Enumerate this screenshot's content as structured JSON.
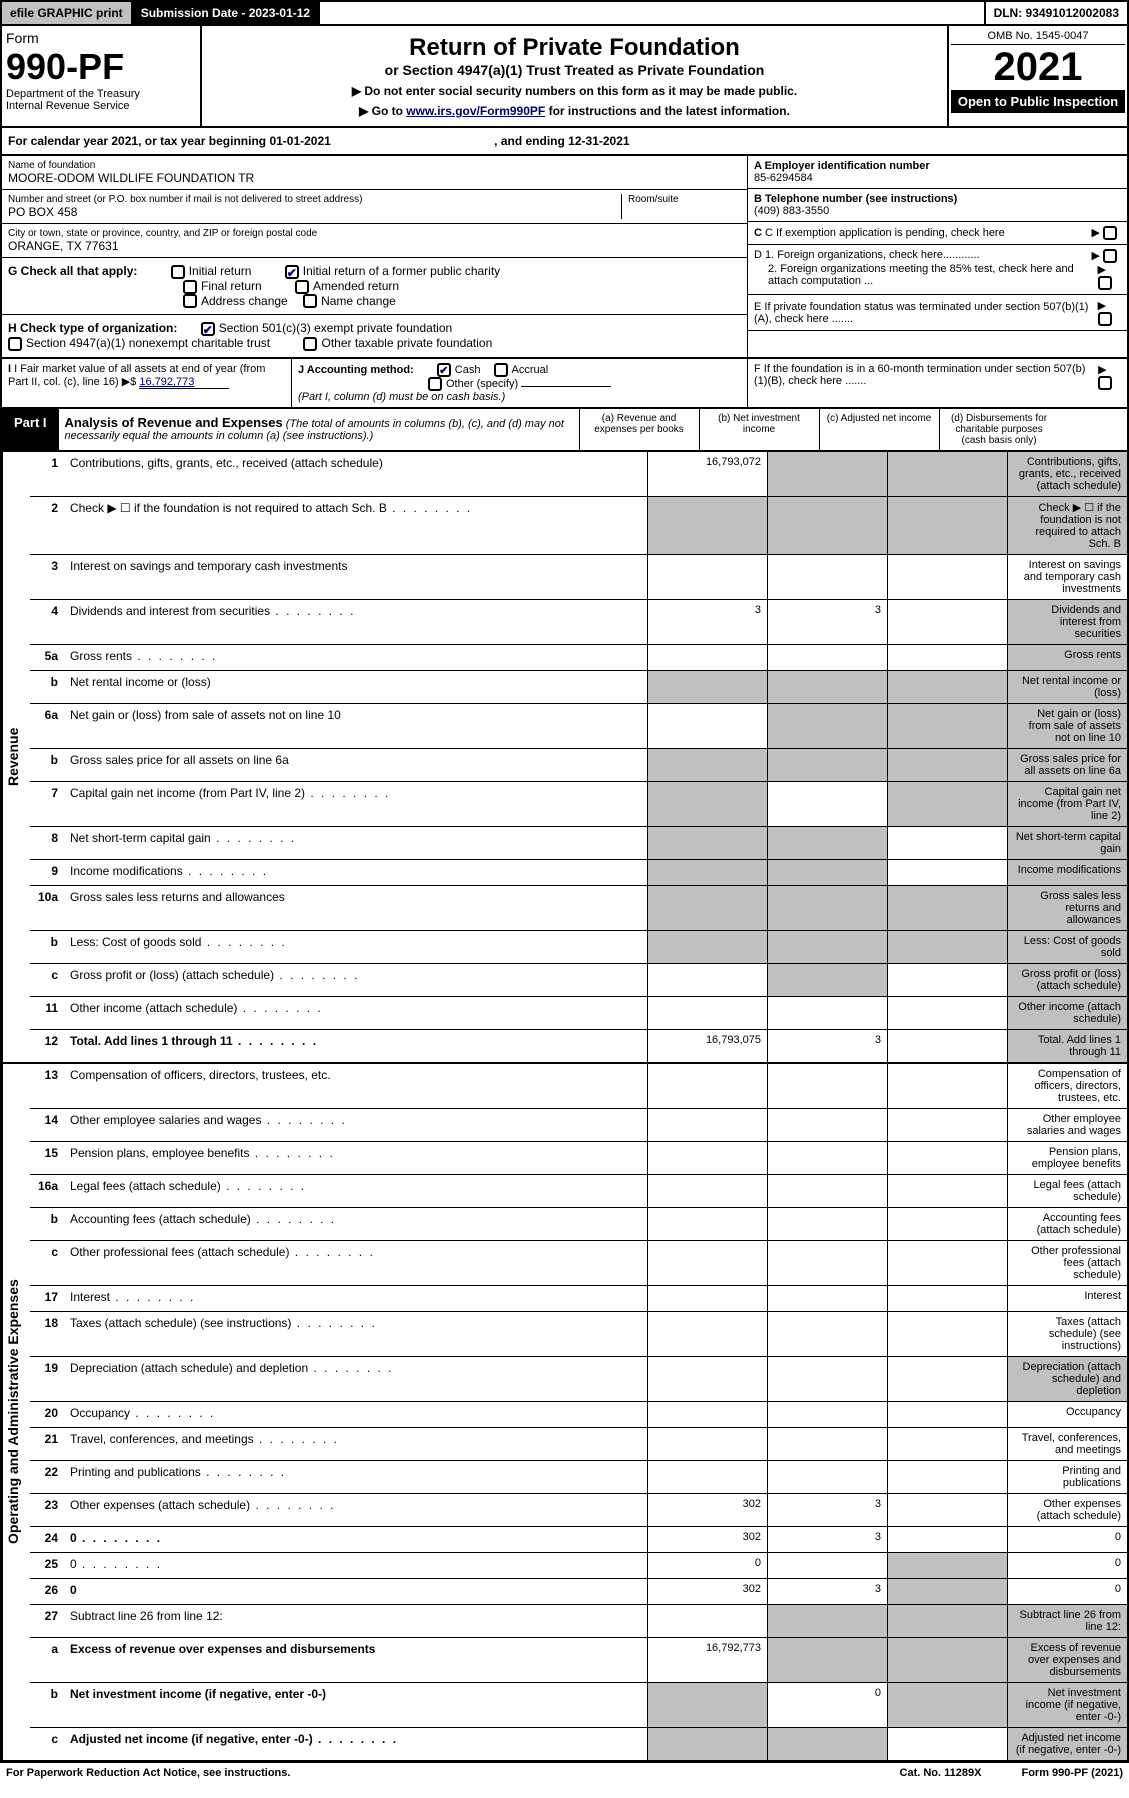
{
  "topbar": {
    "efile": "efile GRAPHIC print",
    "subdate": "Submission Date - 2023-01-12",
    "dln": "DLN: 93491012002083"
  },
  "header": {
    "form_word": "Form",
    "form_num": "990-PF",
    "dept": "Department of the Treasury",
    "irs": "Internal Revenue Service",
    "title": "Return of Private Foundation",
    "subtitle": "or Section 4947(a)(1) Trust Treated as Private Foundation",
    "note1": "▶ Do not enter social security numbers on this form as it may be made public.",
    "note2_pre": "▶ Go to ",
    "note2_link": "www.irs.gov/Form990PF",
    "note2_post": " for instructions and the latest information.",
    "omb": "OMB No. 1545-0047",
    "year": "2021",
    "open": "Open to Public Inspection"
  },
  "calyear": {
    "text": "For calendar year 2021, or tax year beginning 01-01-2021",
    "ending": ", and ending 12-31-2021"
  },
  "entity": {
    "name_label": "Name of foundation",
    "name": "MOORE-ODOM WILDLIFE FOUNDATION TR",
    "addr_label": "Number and street (or P.O. box number if mail is not delivered to street address)",
    "addr": "PO BOX 458",
    "room_label": "Room/suite",
    "city_label": "City or town, state or province, country, and ZIP or foreign postal code",
    "city": "ORANGE, TX  77631"
  },
  "right_info": {
    "a_label": "A Employer identification number",
    "a_val": "85-6294584",
    "b_label": "B Telephone number (see instructions)",
    "b_val": "(409) 883-3550",
    "c_label": "C If exemption application is pending, check here",
    "d1": "D 1. Foreign organizations, check here............",
    "d2": "2. Foreign organizations meeting the 85% test, check here and attach computation ...",
    "e": "E  If private foundation status was terminated under section 507(b)(1)(A), check here .......",
    "f": "F  If the foundation is in a 60-month termination under section 507(b)(1)(B), check here ......."
  },
  "g": {
    "label": "G Check all that apply:",
    "initial": "Initial return",
    "initial_former": "Initial return of a former public charity",
    "final": "Final return",
    "amended": "Amended return",
    "address": "Address change",
    "namechg": "Name change"
  },
  "h": {
    "label": "H Check type of organization:",
    "c3": "Section 501(c)(3) exempt private foundation",
    "s4947": "Section 4947(a)(1) nonexempt charitable trust",
    "other_tax": "Other taxable private foundation"
  },
  "i": {
    "label": "I Fair market value of all assets at end of year (from Part II, col. (c), line 16) ▶$ ",
    "val": "16,792,773"
  },
  "j": {
    "label": "J Accounting method:",
    "cash": "Cash",
    "accrual": "Accrual",
    "other": "Other (specify)",
    "note": "(Part I, column (d) must be on cash basis.)"
  },
  "part1": {
    "label": "Part I",
    "title": "Analysis of Revenue and Expenses",
    "desc": " (The total of amounts in columns (b), (c), and (d) may not necessarily equal the amounts in column (a) (see instructions).)",
    "col_a": "(a)   Revenue and expenses per books",
    "col_b": "(b)   Net investment income",
    "col_c": "(c)   Adjusted net income",
    "col_d": "(d)   Disbursements for charitable purposes (cash basis only)"
  },
  "side_rev": "Revenue",
  "side_exp": "Operating and Administrative Expenses",
  "rows_rev": [
    {
      "n": "1",
      "d": "Contributions, gifts, grants, etc., received (attach schedule)",
      "a": "16,793,072",
      "bgrey": true,
      "cgrey": true,
      "dgrey": true
    },
    {
      "n": "2",
      "d": "Check ▶ ☐ if the foundation is not required to attach Sch. B",
      "allgrey": true,
      "dots": true
    },
    {
      "n": "3",
      "d": "Interest on savings and temporary cash investments"
    },
    {
      "n": "4",
      "d": "Dividends and interest from securities",
      "a": "3",
      "b": "3",
      "dgrey": true,
      "dots": true
    },
    {
      "n": "5a",
      "d": "Gross rents",
      "dgrey": true,
      "dots": true
    },
    {
      "n": "b",
      "d": "Net rental income or (loss)",
      "allgrey": true
    },
    {
      "n": "6a",
      "d": "Net gain or (loss) from sale of assets not on line 10",
      "bgrey": true,
      "cgrey": true,
      "dgrey": true
    },
    {
      "n": "b",
      "d": "Gross sales price for all assets on line 6a",
      "allgrey": true
    },
    {
      "n": "7",
      "d": "Capital gain net income (from Part IV, line 2)",
      "agrey": true,
      "cgrey": true,
      "dgrey": true,
      "dots": true
    },
    {
      "n": "8",
      "d": "Net short-term capital gain",
      "agrey": true,
      "bgrey": true,
      "dgrey": true,
      "dots": true
    },
    {
      "n": "9",
      "d": "Income modifications",
      "agrey": true,
      "bgrey": true,
      "dgrey": true,
      "dots": true
    },
    {
      "n": "10a",
      "d": "Gross sales less returns and allowances",
      "allgrey": true
    },
    {
      "n": "b",
      "d": "Less: Cost of goods sold",
      "allgrey": true,
      "dots": true
    },
    {
      "n": "c",
      "d": "Gross profit or (loss) (attach schedule)",
      "bgrey": true,
      "dgrey": true,
      "dots": true
    },
    {
      "n": "11",
      "d": "Other income (attach schedule)",
      "dgrey": true,
      "dots": true
    },
    {
      "n": "12",
      "d": "Total. Add lines 1 through 11",
      "bold": true,
      "a": "16,793,075",
      "b": "3",
      "dgrey": true,
      "dots": true
    }
  ],
  "rows_exp": [
    {
      "n": "13",
      "d": "Compensation of officers, directors, trustees, etc."
    },
    {
      "n": "14",
      "d": "Other employee salaries and wages",
      "dots": true
    },
    {
      "n": "15",
      "d": "Pension plans, employee benefits",
      "dots": true
    },
    {
      "n": "16a",
      "d": "Legal fees (attach schedule)",
      "dots": true
    },
    {
      "n": "b",
      "d": "Accounting fees (attach schedule)",
      "dots": true
    },
    {
      "n": "c",
      "d": "Other professional fees (attach schedule)",
      "dots": true
    },
    {
      "n": "17",
      "d": "Interest",
      "dots": true
    },
    {
      "n": "18",
      "d": "Taxes (attach schedule) (see instructions)",
      "dots": true
    },
    {
      "n": "19",
      "d": "Depreciation (attach schedule) and depletion",
      "dgrey": true,
      "dots": true
    },
    {
      "n": "20",
      "d": "Occupancy",
      "dots": true
    },
    {
      "n": "21",
      "d": "Travel, conferences, and meetings",
      "dots": true
    },
    {
      "n": "22",
      "d": "Printing and publications",
      "dots": true
    },
    {
      "n": "23",
      "d": "Other expenses (attach schedule)",
      "a": "302",
      "b": "3",
      "dots": true
    },
    {
      "n": "24",
      "d": "0",
      "bold": true,
      "a": "302",
      "b": "3",
      "dots": true
    },
    {
      "n": "25",
      "d": "0",
      "a": "0",
      "cgrey": true,
      "dots": true
    },
    {
      "n": "26",
      "d": "0",
      "bold": true,
      "a": "302",
      "b": "3",
      "cgrey": true
    },
    {
      "n": "27",
      "d": "Subtract line 26 from line 12:",
      "allgrey_bcd": true
    },
    {
      "n": "a",
      "d": "Excess of revenue over expenses and disbursements",
      "bold": true,
      "a": "16,792,773",
      "bgrey": true,
      "cgrey": true,
      "dgrey": true
    },
    {
      "n": "b",
      "d": "Net investment income (if negative, enter -0-)",
      "bold": true,
      "agrey": true,
      "b": "0",
      "cgrey": true,
      "dgrey": true
    },
    {
      "n": "c",
      "d": "Adjusted net income (if negative, enter -0-)",
      "bold": true,
      "agrey": true,
      "bgrey": true,
      "dgrey": true,
      "dots": true
    }
  ],
  "footer": {
    "left": "For Paperwork Reduction Act Notice, see instructions.",
    "mid": "Cat. No. 11289X",
    "right": "Form 990-PF (2021)"
  }
}
